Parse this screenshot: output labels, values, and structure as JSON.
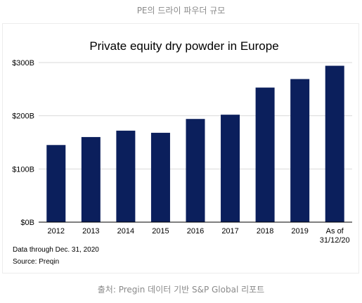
{
  "top_caption": "PE의 드라이 파우더 규모",
  "bottom_caption": "출처: Pregin  데이터 기반 S&P Global 리포트",
  "footnotes": {
    "data_through": "Data through Dec. 31, 2020",
    "source": "Source: Preqin"
  },
  "colors": {
    "bar": "#0b1f5c",
    "grid": "#d9d9d9",
    "axis": "#000000"
  },
  "chart_data": {
    "type": "bar",
    "title": "Private equity dry powder in Europe",
    "xlabel": "",
    "ylabel": "",
    "categories": [
      "2012",
      "2013",
      "2014",
      "2015",
      "2016",
      "2017",
      "2018",
      "2019",
      "As of\n31/12/20"
    ],
    "values": [
      145,
      160,
      172,
      168,
      194,
      202,
      253,
      269,
      294
    ],
    "ylim": [
      0,
      300
    ],
    "yticks": [
      0,
      100,
      200,
      300
    ],
    "ytick_labels": [
      "$0B",
      "$100B",
      "$200B",
      "$300B"
    ],
    "grid": true,
    "legend": "none"
  }
}
